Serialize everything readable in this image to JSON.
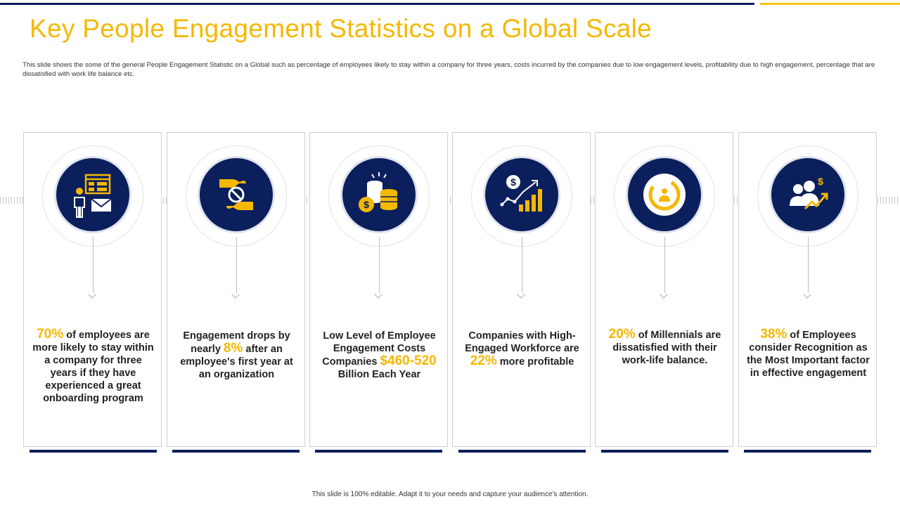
{
  "title": "Key People Engagement Statistics on a Global Scale",
  "subtitle": "This slide shows the some of the general People  Engagement  Statistic on a Global such as percentage of employees likely  to stay within a company for three years, costs incurred by the companies due to low engagement levels, profitability due to high engagement,  percentage that are dissatisfied with work life balance etc.",
  "footer": "This slide is 100% editable.  Adapt it to your needs and capture your audience's attention.",
  "colors": {
    "navy": "#0b1f5c",
    "gold": "#f5b800",
    "accent_bar": "#f5c518"
  },
  "cards": [
    {
      "icon": "employee-mail-icon",
      "pre": "",
      "highlight": "70%",
      "post": " of employees are more likely to stay within a company  for three years if they have experienced a great onboarding program"
    },
    {
      "icon": "hands-prohibited-icon",
      "pre": "Engagement drops by nearly ",
      "highlight": "8%",
      "post": " after an employee's first year at an organization"
    },
    {
      "icon": "coins-dollar-icon",
      "pre": "Low Level of Employee Engagement Costs Companies ",
      "highlight": "$460-520",
      "post": " Billion Each Year"
    },
    {
      "icon": "growth-chart-dollar-icon",
      "pre": "Companies with High-Engaged Workforce are ",
      "highlight": "22%",
      "post": " more profitable"
    },
    {
      "icon": "millennials-circle-icon",
      "pre": "",
      "highlight": "20%",
      "post": " of Millennials are dissatisfied with their work-life balance."
    },
    {
      "icon": "recognition-people-icon",
      "pre": "",
      "highlight": "38%",
      "post": " of Employees consider Recognition as the Most Important factor in effective engagement"
    }
  ]
}
